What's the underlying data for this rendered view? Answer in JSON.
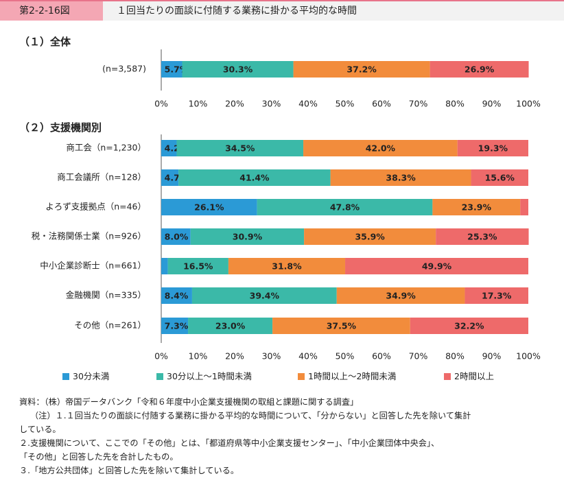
{
  "header": {
    "figure_label": "第2-2-16図",
    "figure_title": "１回当たりの面談に付随する業務に掛かる平均的な時間"
  },
  "colors": {
    "under30": "#2b9ad6",
    "30to60": "#3bb9a8",
    "60to120": "#f28c3c",
    "over120": "#ee6a6a"
  },
  "chart_data": [
    {
      "type": "bar",
      "orientation": "horizontal-stacked-100",
      "title": "（１）全体",
      "categories": [
        "(n=3,587)"
      ],
      "series": [
        {
          "name": "30分未満",
          "values": [
            5.7
          ]
        },
        {
          "name": "30分以上～1時間未満",
          "values": [
            30.3
          ]
        },
        {
          "name": "1時間以上～2時間未満",
          "values": [
            37.2
          ]
        },
        {
          "name": "2時間以上",
          "values": [
            26.9
          ]
        }
      ],
      "xlim": [
        0,
        100
      ],
      "xticks": [
        "0%",
        "10%",
        "20%",
        "30%",
        "40%",
        "50%",
        "60%",
        "70%",
        "80%",
        "90%",
        "100%"
      ]
    },
    {
      "type": "bar",
      "orientation": "horizontal-stacked-100",
      "title": "（２）支援機関別",
      "categories": [
        "商工会（n=1,230）",
        "商工会議所（n=128）",
        "よろず支援拠点（n=46）",
        "税・法務関係士業（n=926）",
        "中小企業診断士（n=661）",
        "金融機関（n=335）",
        "その他（n=261）"
      ],
      "series": [
        {
          "name": "30分未満",
          "values": [
            4.2,
            4.7,
            26.1,
            8.0,
            1.8,
            8.4,
            7.3
          ]
        },
        {
          "name": "30分以上～1時間未満",
          "values": [
            34.5,
            41.4,
            47.8,
            30.9,
            16.5,
            39.4,
            23.0
          ]
        },
        {
          "name": "1時間以上～2時間未満",
          "values": [
            42.0,
            38.3,
            23.9,
            35.9,
            31.8,
            34.9,
            37.5
          ]
        },
        {
          "name": "2時間以上",
          "values": [
            19.3,
            15.6,
            2.2,
            25.3,
            49.9,
            17.3,
            32.2
          ]
        }
      ],
      "labels": [
        [
          "4.2%",
          "34.5%",
          "42.0%",
          "19.3%"
        ],
        [
          "4.7%",
          "41.4%",
          "38.3%",
          "15.6%"
        ],
        [
          "26.1%",
          "47.8%",
          "23.9%",
          ""
        ],
        [
          "8.0%",
          "30.9%",
          "35.9%",
          "25.3%"
        ],
        [
          "",
          "16.5%",
          "31.8%",
          "49.9%"
        ],
        [
          "8.4%",
          "39.4%",
          "34.9%",
          "17.3%"
        ],
        [
          "7.3%",
          "23.0%",
          "37.5%",
          "32.2%"
        ]
      ],
      "xlim": [
        0,
        100
      ],
      "xticks": [
        "0%",
        "10%",
        "20%",
        "30%",
        "40%",
        "50%",
        "60%",
        "70%",
        "80%",
        "90%",
        "100%"
      ],
      "legend": {
        "position": "bottom",
        "entries": [
          "30分未満",
          "30分以上～1時間未満",
          "1時間以上～2時間未満",
          "2時間以上"
        ]
      }
    }
  ],
  "notes": [
    "資料：（株）帝国データバンク「令和６年度中小企業支援機関の取組と課題に関する調査」",
    "（注）１.１回当たりの面談に付随する業務に掛かる平均的な時間について、「分からない」と回答した先を除いて集計",
    "している。",
    "２.支援機関について、ここでの「その他」とは、「都道府県等中小企業支援センター」、「中小企業団体中央会」、",
    "「その他」と回答した先を合計したもの。",
    "３.「地方公共団体」と回答した先を除いて集計している。"
  ]
}
